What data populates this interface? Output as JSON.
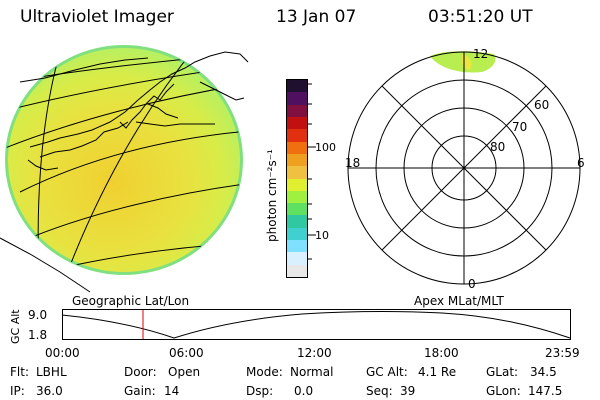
{
  "header": {
    "title": "Ultraviolet Imager",
    "date": "13 Jan 07",
    "time": "03:51:20 UT"
  },
  "colorbar": {
    "unit_label": "photon cm⁻²s⁻¹",
    "ticks": [
      "100",
      "10"
    ],
    "colors": [
      "#e8e8e8",
      "#d8f0ff",
      "#80e0ff",
      "#40d0d0",
      "#30c8a0",
      "#60e060",
      "#a0f040",
      "#e0f030",
      "#f0c040",
      "#f0a020",
      "#f07010",
      "#e03010",
      "#c01010",
      "#801040",
      "#501060",
      "#201030"
    ]
  },
  "polar_plot": {
    "mlt_labels": [
      "12",
      "18",
      "6",
      "0"
    ],
    "mlat_labels": [
      "60",
      "70",
      "80"
    ]
  },
  "altitude_strip": {
    "left_label": "Geographic Lat/Lon",
    "right_label": "Apex MLat/MLT",
    "axis_title": "GC Alt",
    "y_ticks": [
      "9.0",
      "1.8"
    ],
    "x_ticks": [
      "00:00",
      "06:00",
      "12:00",
      "18:00",
      "23:59"
    ],
    "marker_color": "#e00000"
  },
  "status": {
    "row1": [
      {
        "label": "Flt:",
        "value": "LBHL"
      },
      {
        "label": "Door:",
        "value": "Open"
      },
      {
        "label": "Mode:",
        "value": "Normal"
      },
      {
        "label": "GC Alt:",
        "value": "4.1 Re"
      },
      {
        "label": "GLat:",
        "value": "34.5"
      }
    ],
    "row2": [
      {
        "label": "IP:",
        "value": "36.0"
      },
      {
        "label": "Gain:",
        "value": "14"
      },
      {
        "label": "Dsp:",
        "value": "0.0"
      },
      {
        "label": "Seq:",
        "value": "39"
      },
      {
        "label": "GLon:",
        "value": "147.5"
      }
    ]
  }
}
